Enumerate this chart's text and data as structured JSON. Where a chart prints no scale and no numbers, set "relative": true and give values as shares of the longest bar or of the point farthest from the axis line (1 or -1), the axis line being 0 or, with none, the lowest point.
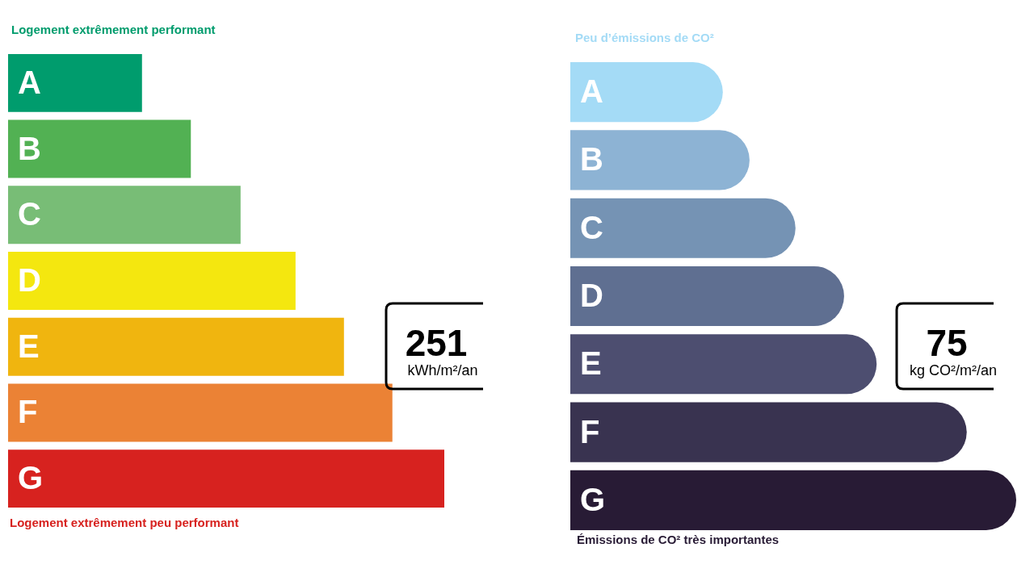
{
  "chart_data": [
    {
      "type": "bar",
      "orientation": "horizontal",
      "relative": true,
      "title": "Logement extrêmement performant",
      "categories": [
        "A",
        "B",
        "C",
        "D",
        "E",
        "F",
        "G"
      ],
      "values": [
        0.307,
        0.419,
        0.533,
        0.659,
        0.77,
        0.881,
        1
      ],
      "colors": [
        "#009c6d",
        "#52b153",
        "#78bd76",
        "#f4e70f",
        "#f0b50f",
        "#eb8235",
        "#d7221f"
      ],
      "annotations": [
        "Logement extrêmement peu performant",
        "251 kWh/m²/an"
      ]
    },
    {
      "type": "bar",
      "orientation": "horizontal",
      "relative": true,
      "title": "Peu d’émissions de CO²",
      "categories": [
        "A",
        "B",
        "C",
        "D",
        "E",
        "F",
        "G"
      ],
      "values": [
        0.342,
        0.402,
        0.505,
        0.614,
        0.687,
        0.889,
        1
      ],
      "colors": [
        "#a4dbf6",
        "#8db3d4",
        "#7593b4",
        "#5f6f91",
        "#4d4e70",
        "#393350",
        "#281b35"
      ],
      "annotations": [
        "Émissions de CO² très importantes",
        "75 kg CO²/m²/an"
      ]
    }
  ]
}
